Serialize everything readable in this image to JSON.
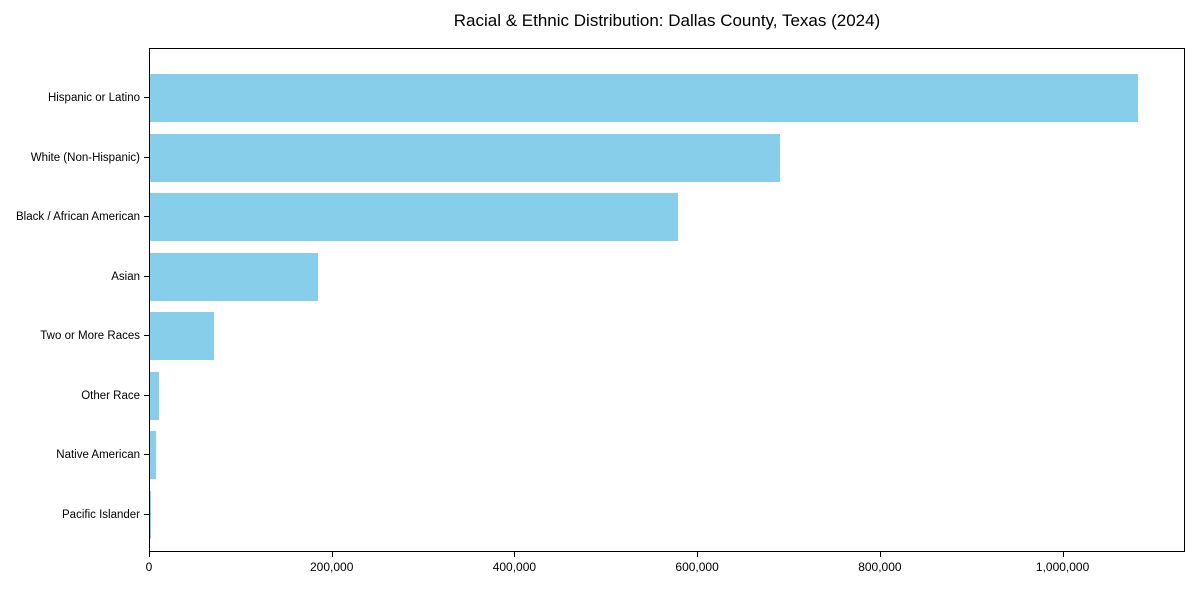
{
  "title": "Racial & Ethnic Distribution: Dallas County, Texas (2024)",
  "chart_data": {
    "type": "bar",
    "orientation": "horizontal",
    "title": "Racial & Ethnic Distribution: Dallas County, Texas (2024)",
    "categories": [
      "Hispanic or Latino",
      "White (Non-Hispanic)",
      "Black / African American",
      "Asian",
      "Two or More Races",
      "Other Race",
      "Native American",
      "Pacific Islander"
    ],
    "values": [
      1081000,
      690000,
      578000,
      184000,
      70000,
      10000,
      6500,
      1000
    ],
    "xlabel": "",
    "ylabel": "",
    "xlim": [
      0,
      1134000
    ],
    "x_ticks": [
      0,
      200000,
      400000,
      600000,
      800000,
      1000000
    ],
    "x_tick_labels": [
      "0",
      "200,000",
      "400,000",
      "600,000",
      "800,000",
      "1,000,000"
    ],
    "bar_color": "#87CEEB",
    "grid": false,
    "legend": null,
    "background_color": "#ffffff",
    "spine_color": "#000000"
  }
}
